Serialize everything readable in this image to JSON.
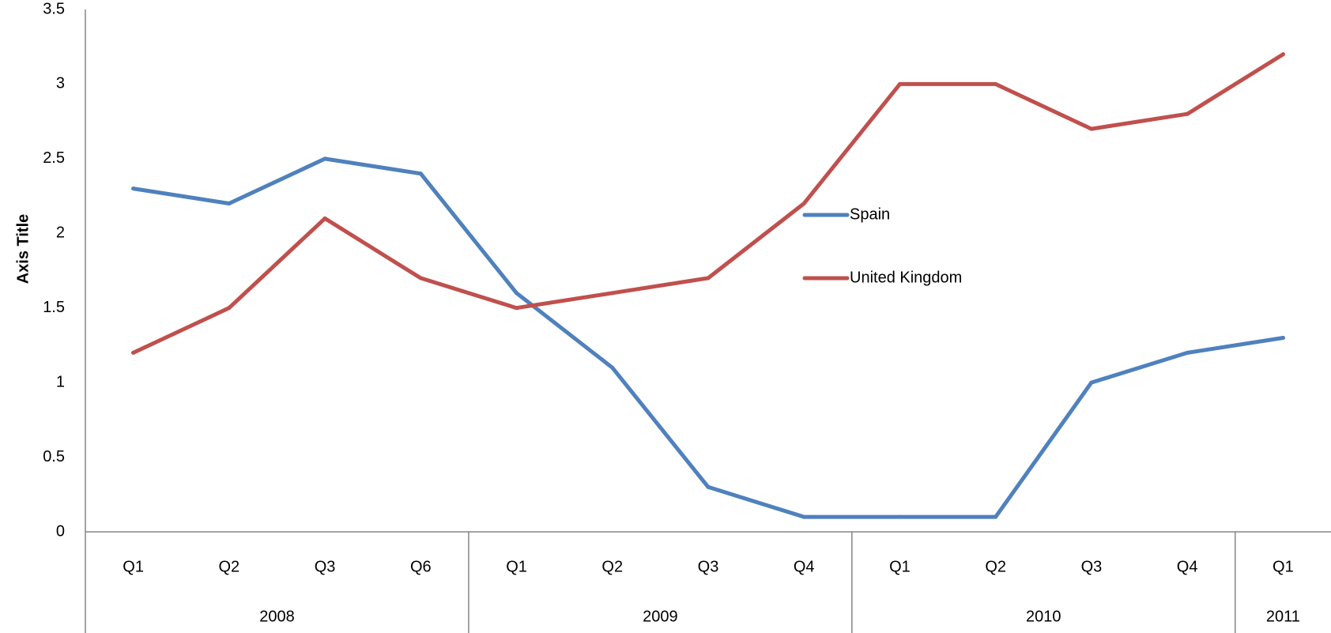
{
  "chart_data": {
    "type": "line",
    "ylabel": "Axis Title",
    "ylim": [
      0,
      3.5
    ],
    "yticks": [
      0,
      0.5,
      1,
      1.5,
      2,
      2.5,
      3,
      3.5
    ],
    "ytick_labels": [
      "0",
      "0.5",
      "1",
      "1.5",
      "2",
      "2.5",
      "3",
      "3.5"
    ],
    "categories": [
      "Q1",
      "Q2",
      "Q3",
      "Q6",
      "Q1",
      "Q2",
      "Q3",
      "Q4",
      "Q1",
      "Q2",
      "Q3",
      "Q4",
      "Q1"
    ],
    "groups": [
      {
        "label": "2008",
        "count": 4
      },
      {
        "label": "2009",
        "count": 4
      },
      {
        "label": "2010",
        "count": 4
      },
      {
        "label": "2011",
        "count": 1
      }
    ],
    "series": [
      {
        "name": "Spain",
        "color": "#4F81BD",
        "values": [
          2.3,
          2.2,
          2.5,
          2.4,
          1.6,
          1.1,
          0.3,
          0.1,
          0.1,
          0.1,
          1.0,
          1.2,
          1.3
        ]
      },
      {
        "name": "United Kingdom",
        "color": "#C0504D",
        "values": [
          1.2,
          1.5,
          2.1,
          1.7,
          1.5,
          1.6,
          1.7,
          2.2,
          3.0,
          3.0,
          2.7,
          2.8,
          3.2
        ]
      }
    ],
    "grid": false,
    "legend_position": "center"
  }
}
